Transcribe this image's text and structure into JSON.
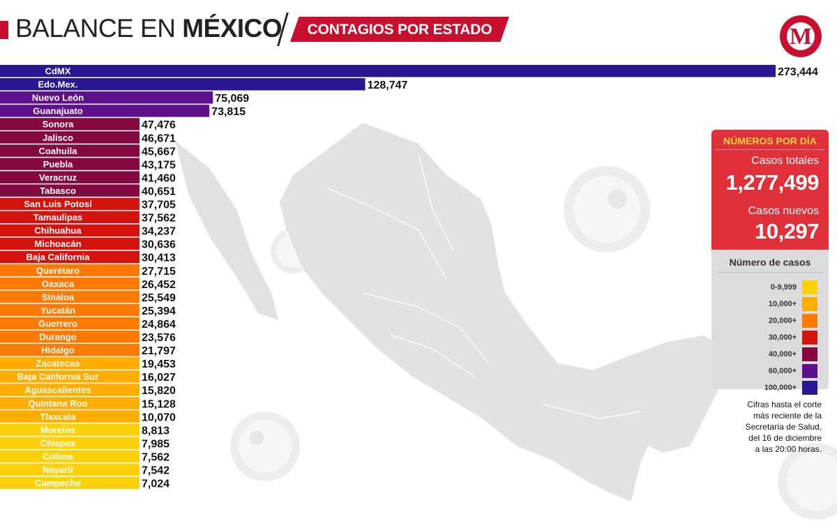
{
  "header": {
    "title_light": "BALANCE EN ",
    "title_bold": "MÉXICO",
    "subtitle": "CONTAGIOS POR ESTADO",
    "logo_letter": "M"
  },
  "panel": {
    "heading": "NÚMEROS POR DÍA",
    "total_label": "Casos totales",
    "total_value": "1,277,499",
    "new_label": "Casos nuevos",
    "new_value": "10,297"
  },
  "legend": {
    "title": "Número de casos",
    "items": [
      {
        "label": "0-9,999",
        "color": "#ffd10a"
      },
      {
        "label": "10,000+",
        "color": "#ffae00"
      },
      {
        "label": "20,000+",
        "color": "#ff7a00"
      },
      {
        "label": "30,000+",
        "color": "#d4130f"
      },
      {
        "label": "40,000+",
        "color": "#850940"
      },
      {
        "label": "60,000+",
        "color": "#5e0f8c"
      },
      {
        "label": "100,000+",
        "color": "#2a1690"
      }
    ]
  },
  "note": {
    "lines": [
      "Cifras hasta el corte",
      "más reciente de la",
      "Secretaría de Salud,",
      "del 16 de diciembre",
      "a las 20:00 horas."
    ]
  },
  "chart_data": {
    "type": "bar",
    "orientation": "horizontal",
    "categories": [
      "CdMX",
      "Edo.Mex.",
      "Nuevo León",
      "Guanajuato",
      "Sonora",
      "Jalisco",
      "Coahuila",
      "Puebla",
      "Veracruz",
      "Tabasco",
      "San Luis Potosí",
      "Tamaulipas",
      "Chihuahua",
      "Michoacán",
      "Baja California",
      "Querétaro",
      "Oaxaca",
      "Sinaloa",
      "Yucatán",
      "Guerrero",
      "Durango",
      "Hidalgo",
      "Zacatecas",
      "Baja California Sur",
      "Aguascalientes",
      "Quintana Roo",
      "Tlaxcala",
      "Morelos",
      "Chiapas",
      "Colima",
      "Nayarit",
      "Campeche"
    ],
    "values": [
      273444,
      128747,
      75069,
      73815,
      47476,
      46671,
      45667,
      43175,
      41460,
      40651,
      37705,
      37562,
      34237,
      30636,
      30413,
      27715,
      26452,
      25549,
      25394,
      24864,
      23576,
      21797,
      19453,
      16027,
      15820,
      15128,
      10070,
      8813,
      7985,
      7562,
      7542,
      7024
    ],
    "value_labels": [
      "273,444",
      "128,747",
      "75,069",
      "73,815",
      "47,476",
      "46,671",
      "45,667",
      "43,175",
      "41,460",
      "40,651",
      "37,705",
      "37,562",
      "34,237",
      "30,636",
      "30,413",
      "27,715",
      "26,452",
      "25,549",
      "25,394",
      "24,864",
      "23,576",
      "21,797",
      "19,453",
      "16,027",
      "15,820",
      "15,128",
      "10,070",
      "8,813",
      "7,985",
      "7,562",
      "7,542",
      "7,024"
    ],
    "color_bins": [
      {
        "min": 0,
        "color": "#ffd10a"
      },
      {
        "min": 10000,
        "color": "#ffae00"
      },
      {
        "min": 20000,
        "color": "#ff7a00"
      },
      {
        "min": 30000,
        "color": "#d4130f"
      },
      {
        "min": 40000,
        "color": "#850940"
      },
      {
        "min": 60000,
        "color": "#5e0f8c"
      },
      {
        "min": 100000,
        "color": "#2a1690"
      }
    ],
    "title": "",
    "xlabel": "",
    "ylabel": "",
    "grid": false,
    "legend_position": "right"
  }
}
